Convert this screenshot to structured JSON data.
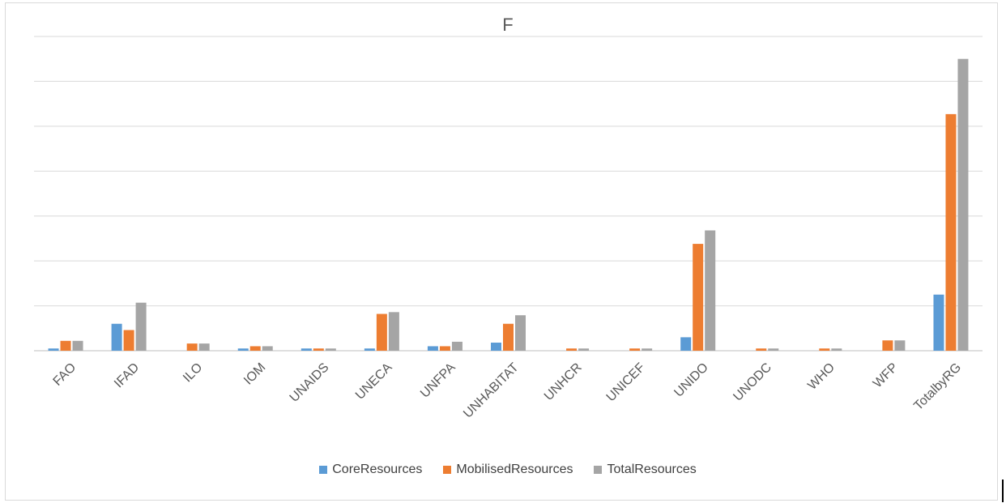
{
  "chart_data": {
    "type": "bar",
    "title": "F",
    "xlabel": "",
    "ylabel": "",
    "ylim": [
      0,
      7
    ],
    "grid": true,
    "legend_position": "bottom",
    "categories": [
      "FAO",
      "IFAD",
      "ILO",
      "IOM",
      "UNAIDS",
      "UNECA",
      "UNFPA",
      "UNHABITAT",
      "UNHCR",
      "UNICEF",
      "UNIDO",
      "UNODC",
      "WHO",
      "WFP",
      "TotalbyRG"
    ],
    "series": [
      {
        "name": "CoreResources",
        "color": "#5b9bd5",
        "values": [
          0.05,
          0.6,
          0.0,
          0.05,
          0.05,
          0.05,
          0.1,
          0.18,
          0.0,
          0.0,
          0.3,
          0.0,
          0.0,
          0.0,
          1.25
        ]
      },
      {
        "name": "MobilisedResources",
        "color": "#ed7d31",
        "values": [
          0.22,
          0.46,
          0.16,
          0.1,
          0.05,
          0.82,
          0.1,
          0.6,
          0.05,
          0.05,
          2.38,
          0.05,
          0.05,
          0.23,
          5.27
        ]
      },
      {
        "name": "TotalResources",
        "color": "#a5a5a5",
        "values": [
          0.22,
          1.07,
          0.16,
          0.1,
          0.05,
          0.86,
          0.2,
          0.79,
          0.05,
          0.05,
          2.68,
          0.05,
          0.05,
          0.23,
          6.5
        ]
      }
    ]
  }
}
